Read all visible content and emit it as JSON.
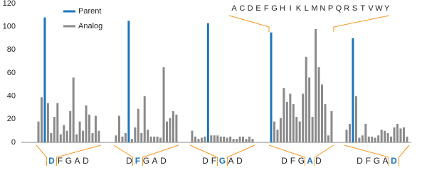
{
  "chart_data": {
    "type": "grouped-bar",
    "series": [
      {
        "name": "Parent",
        "color": "#1b75bb"
      },
      {
        "name": "Analog",
        "color": "#8a8a8a"
      }
    ],
    "residues": [
      "A",
      "C",
      "D",
      "E",
      "F",
      "G",
      "H",
      "I",
      "K",
      "L",
      "M",
      "N",
      "P",
      "Q",
      "R",
      "S",
      "T",
      "V",
      "W",
      "Y"
    ],
    "ylim": [
      0,
      120
    ],
    "yticks": [
      0,
      20,
      40,
      60,
      80,
      100,
      120
    ],
    "accent_color": "#f7941d",
    "groups": [
      {
        "parent": 108,
        "analogs": [
          18,
          39,
          null,
          34,
          8,
          22,
          34,
          7,
          15,
          10,
          27,
          56,
          7,
          18,
          10,
          32,
          24,
          8,
          23,
          10
        ],
        "motif": [
          "D",
          "F",
          "G",
          "A",
          "D"
        ],
        "highlight": 0
      },
      {
        "parent": 105,
        "analogs": [
          6,
          23,
          5,
          8,
          null,
          3,
          13,
          29,
          8,
          40,
          11,
          5,
          5,
          5,
          4,
          65,
          18,
          21,
          27,
          24
        ],
        "motif": [
          "D",
          "F",
          "G",
          "A",
          "D"
        ],
        "highlight": 1
      },
      {
        "parent": 103,
        "analogs": [
          10,
          5,
          3,
          4,
          5,
          null,
          6,
          6,
          6,
          5,
          5,
          4,
          5,
          3,
          3,
          5,
          5,
          3,
          5,
          3
        ],
        "motif": [
          "D",
          "F",
          "G",
          "A",
          "D"
        ],
        "highlight": 2
      },
      {
        "parent": 95,
        "analogs": [
          null,
          18,
          11,
          21,
          47,
          35,
          42,
          33,
          22,
          18,
          42,
          74,
          56,
          22,
          98,
          65,
          50,
          33,
          6,
          27
        ],
        "motif": [
          "D",
          "F",
          "G",
          "A",
          "D"
        ],
        "highlight": 3
      },
      {
        "parent": 90,
        "analogs": [
          11,
          16,
          null,
          40,
          4,
          6,
          16,
          5,
          5,
          4,
          6,
          11,
          10,
          8,
          5,
          13,
          16,
          12,
          13,
          5
        ],
        "motif": [
          "D",
          "F",
          "G",
          "A",
          "D"
        ],
        "highlight": 4
      }
    ]
  }
}
